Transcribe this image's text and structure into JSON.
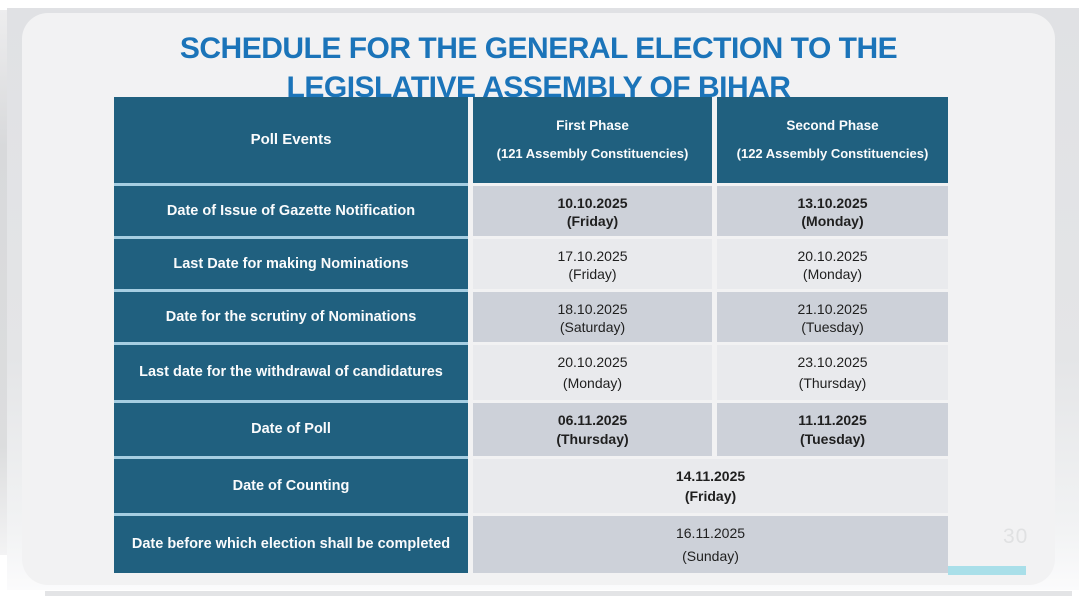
{
  "title": {
    "line1": "SCHEDULE FOR THE GENERAL ELECTION TO THE",
    "line2": "LEGISLATIVE ASSEMBLY OF BIHAR"
  },
  "page_number": "30",
  "colors": {
    "teal": "#20607F",
    "titleBlue": "#1B74B9",
    "rowDark": "#CDD1D9",
    "rowLight": "#E9EAED",
    "separatorBlue": "#A6CEE2",
    "slideBg": "#F2F2F3",
    "backdrop": "#E0E1E4",
    "cyanBar": "#A9DFE9",
    "pageNum": "#E0E1E2",
    "textDark": "#1F1F1F"
  },
  "table": {
    "headers": {
      "events": "Poll Events",
      "first": {
        "label": "First Phase",
        "sub": "(121 Assembly Constituencies)"
      },
      "second": {
        "label": "Second Phase",
        "sub": "(122 Assembly Constituencies)"
      }
    },
    "rows": [
      {
        "event": "Date of Issue of Gazette Notification",
        "first": {
          "date": "10.10.2025",
          "day": "(Friday)"
        },
        "second": {
          "date": "13.10.2025",
          "day": "(Monday)"
        }
      },
      {
        "event": "Last Date for making Nominations",
        "first": {
          "date": "17.10.2025",
          "day": "(Friday)"
        },
        "second": {
          "date": "20.10.2025",
          "day": "(Monday)"
        }
      },
      {
        "event": "Date for the scrutiny of Nominations",
        "first": {
          "date": "18.10.2025",
          "day": "(Saturday)"
        },
        "second": {
          "date": "21.10.2025",
          "day": "(Tuesday)"
        }
      },
      {
        "event": "Last date for the withdrawal of candidatures",
        "first": {
          "date": "20.10.2025",
          "day": "(Monday)"
        },
        "second": {
          "date": "23.10.2025",
          "day": "(Thursday)"
        }
      },
      {
        "event": "Date of Poll",
        "first": {
          "date": "06.11.2025",
          "day": "(Thursday)"
        },
        "second": {
          "date": "11.11.2025",
          "day": "(Tuesday)"
        }
      },
      {
        "event": "Date of Counting",
        "combined": {
          "date": "14.11.2025",
          "day": "(Friday)"
        }
      },
      {
        "event": "Date before which election shall be completed",
        "combined": {
          "date": "16.11.2025",
          "day": "(Sunday)"
        }
      }
    ]
  }
}
